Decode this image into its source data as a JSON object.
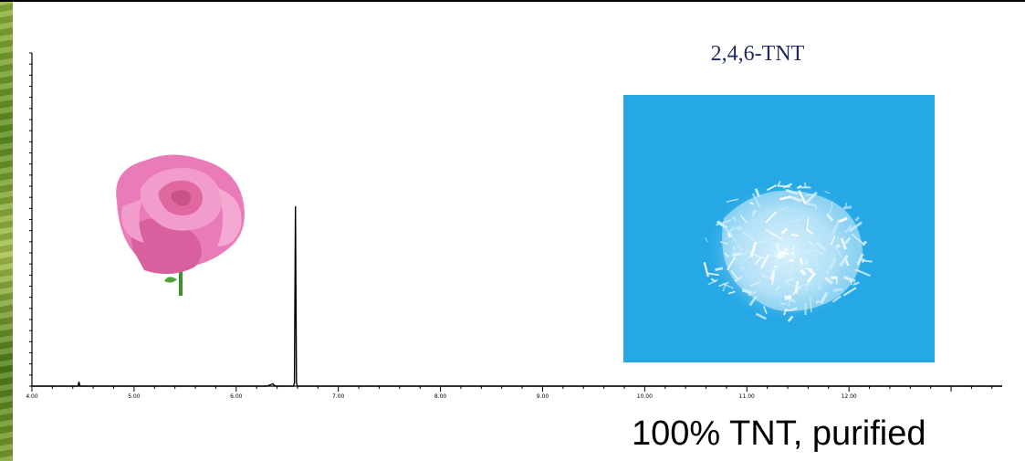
{
  "photo_label": "2,4,6-TNT",
  "caption": "100% TNT, purified",
  "colors": {
    "photo_background": "#26a8e6",
    "rose_petals": "#e97bb8",
    "label_text": "#1f2a5a"
  },
  "chart_data": {
    "type": "line",
    "title": "",
    "xlabel": "",
    "ylabel": "",
    "xlim": [
      4.0,
      13.5
    ],
    "ylim": [
      0,
      100
    ],
    "grid": false,
    "x_ticks": [
      4.0,
      5.0,
      6.0,
      7.0,
      8.0,
      9.0,
      10.0,
      11.0,
      12.0
    ],
    "x_tick_labels": [
      "4.00",
      "5.00",
      "6.00",
      "7.00",
      "8.00",
      "9.00",
      "10.00",
      "11.00",
      "12.00"
    ],
    "series": [
      {
        "x": [
          4.0,
          4.45,
          4.46,
          4.47,
          6.3,
          6.36,
          6.38,
          6.4,
          6.56,
          6.57,
          6.58,
          6.59,
          6.6,
          6.68,
          7.0,
          8.0,
          9.0,
          10.0,
          11.0,
          12.0,
          13.5
        ],
        "y": [
          0,
          0,
          1.3,
          0,
          0,
          0.7,
          0,
          0,
          0,
          1.0,
          54,
          1.0,
          0,
          0,
          0,
          0,
          0,
          0,
          0,
          0,
          0
        ]
      }
    ]
  },
  "icons": [
    "rose-image",
    "tnt-crystals-image"
  ]
}
